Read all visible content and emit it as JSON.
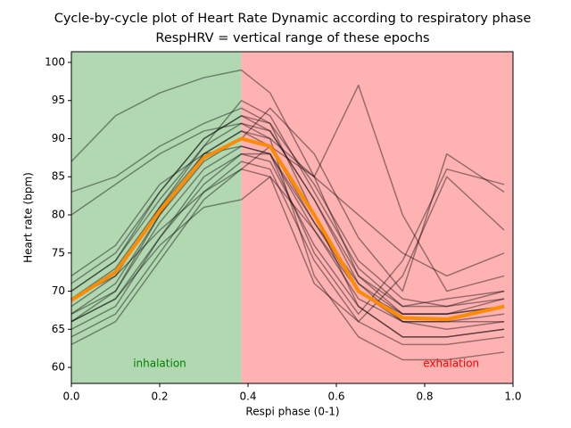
{
  "chart_data": {
    "type": "line",
    "title": "Cycle-by-cycle plot of Heart Rate Dynamic according to respiratory phase",
    "subtitle": "RespHRV = vertical range of these epochs",
    "xlabel": "Respi phase (0-1)",
    "ylabel": "Heart rate (bpm)",
    "xlim": [
      0,
      1
    ],
    "ylim": [
      57.9,
      101.4
    ],
    "xticks": [
      {
        "value": 0,
        "label": "0.0"
      },
      {
        "value": 0.2,
        "label": "0.2"
      },
      {
        "value": 0.4,
        "label": "0.4"
      },
      {
        "value": 0.6,
        "label": "0.6"
      },
      {
        "value": 0.8,
        "label": "0.8"
      },
      {
        "value": 1,
        "label": "1.0"
      }
    ],
    "yticks": [
      60,
      65,
      70,
      75,
      80,
      85,
      90,
      95,
      100
    ],
    "spans": [
      {
        "xlim": [
          0,
          0.385
        ],
        "color": "#b2d8b2",
        "label": "inhalation",
        "label_color": "#008000",
        "label_x": 0.2,
        "label_y": 60.5
      },
      {
        "xlim": [
          0.385,
          1
        ],
        "color": "#ffb2b2",
        "label": "exhalation",
        "label_color": "#ff0000",
        "label_x": 0.86,
        "label_y": 60.5
      }
    ],
    "x": [
      0,
      0.1,
      0.2,
      0.3,
      0.385,
      0.45,
      0.55,
      0.65,
      0.75,
      0.85,
      0.98
    ],
    "series": [
      {
        "color": "#000000",
        "values": [
          67,
          70,
          79,
          86,
          89,
          88,
          78,
          69,
          66,
          65,
          66
        ]
      },
      {
        "color": "#000000",
        "values": [
          65,
          68,
          77,
          85,
          88,
          87,
          76,
          68,
          64,
          64,
          65
        ]
      },
      {
        "color": "#000000",
        "values": [
          70,
          74,
          83,
          90,
          93,
          91,
          82,
          72,
          67,
          67,
          68
        ]
      },
      {
        "color": "#000000",
        "values": [
          64,
          67,
          75,
          83,
          87,
          86,
          74,
          66,
          63,
          63,
          64
        ]
      },
      {
        "color": "#000000",
        "values": [
          87,
          93,
          96,
          98,
          99,
          96,
          85,
          72,
          68,
          68,
          69
        ]
      },
      {
        "color": "#000000",
        "values": [
          83,
          85,
          89,
          92,
          94,
          92,
          84,
          74,
          69,
          68,
          70
        ]
      },
      {
        "color": "#000000",
        "values": [
          66,
          70,
          80,
          88,
          91,
          90,
          72,
          64,
          61,
          61,
          62
        ]
      },
      {
        "color": "#000000",
        "values": [
          68,
          72,
          81,
          89,
          92,
          90,
          85,
          97,
          80,
          70,
          72
        ]
      },
      {
        "color": "#000000",
        "values": [
          72,
          76,
          84,
          88,
          89,
          88,
          75,
          67,
          74,
          86,
          84
        ]
      },
      {
        "color": "#000000",
        "values": [
          67,
          71,
          80,
          87,
          90,
          94,
          88,
          77,
          70,
          88,
          83
        ]
      },
      {
        "color": "#000000",
        "values": [
          66,
          69,
          76,
          81,
          82,
          85,
          71,
          66,
          72,
          85,
          78
        ]
      },
      {
        "color": "#000000",
        "values": [
          69,
          72,
          78,
          83,
          86,
          89,
          85,
          80,
          75,
          72,
          75
        ]
      },
      {
        "color": "#000000",
        "values": [
          63,
          66,
          74,
          82,
          86,
          85,
          78,
          70,
          66,
          66,
          67
        ]
      },
      {
        "color": "#000000",
        "values": [
          69,
          73,
          81,
          88,
          91,
          89,
          79,
          70,
          67,
          67,
          69
        ]
      },
      {
        "color": "#000000",
        "values": [
          80,
          84,
          88,
          91,
          92,
          91,
          82,
          71,
          66,
          66,
          66
        ]
      },
      {
        "color": "#000000",
        "values": [
          70,
          74,
          82,
          89,
          95,
          93,
          83,
          73,
          68,
          69,
          70
        ]
      },
      {
        "color": "#000000",
        "values": [
          66,
          69,
          77,
          84,
          88,
          88,
          79,
          71,
          67,
          67,
          68
        ]
      },
      {
        "color": "#000000",
        "values": [
          71,
          75,
          83,
          90,
          93,
          92,
          80,
          68,
          64,
          64,
          65
        ]
      },
      {
        "color": "#ff8c00",
        "values": [
          68.8,
          72.5,
          80.5,
          87.5,
          90,
          89,
          80,
          70,
          66.5,
          66.3,
          68
        ]
      }
    ]
  }
}
